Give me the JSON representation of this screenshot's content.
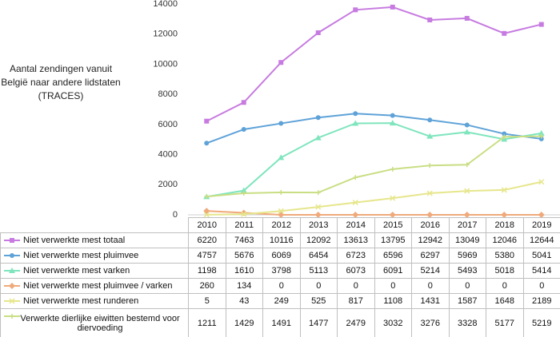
{
  "chart_data": {
    "type": "line",
    "title": "Aantal zendingen vanuit België naar andere lidstaten (TRACES)",
    "categories": [
      "2010",
      "2011",
      "2012",
      "2013",
      "2014",
      "2015",
      "2016",
      "2017",
      "2018",
      "2019"
    ],
    "ylim": [
      0,
      14000
    ],
    "yticks": [
      0,
      2000,
      4000,
      6000,
      8000,
      10000,
      12000,
      14000
    ],
    "grid": false,
    "series": [
      {
        "name": "Niet verwerkte mest totaal",
        "color": "#c77be0",
        "marker": "square",
        "values": [
          6220,
          7463,
          10116,
          12092,
          13613,
          13795,
          12942,
          13049,
          12046,
          12644
        ]
      },
      {
        "name": "Niet verwerkte mest pluimvee",
        "color": "#5ea2d8",
        "marker": "circle",
        "values": [
          4757,
          5676,
          6069,
          6454,
          6723,
          6596,
          6297,
          5969,
          5380,
          5041
        ]
      },
      {
        "name": "Niet verwerkte mest varken",
        "color": "#7fe5be",
        "marker": "triangle",
        "values": [
          1198,
          1610,
          3798,
          5113,
          6073,
          6091,
          5214,
          5493,
          5018,
          5414
        ]
      },
      {
        "name": "Niet verwerkte mest pluimvee / varken",
        "color": "#f0a97a",
        "marker": "diamond",
        "values": [
          260,
          134,
          0,
          0,
          0,
          0,
          0,
          0,
          0,
          0
        ]
      },
      {
        "name": "Niet verwerkte mest runderen",
        "color": "#e6e68c",
        "marker": "x",
        "values": [
          5,
          43,
          249,
          525,
          817,
          1108,
          1431,
          1587,
          1648,
          2189
        ]
      },
      {
        "name": "Verwerkte dierlijke eiwitten bestemd voor diervoeding",
        "color": "#c9de84",
        "marker": "plus",
        "values": [
          1211,
          1429,
          1491,
          1477,
          2479,
          3032,
          3276,
          3328,
          5177,
          5219
        ]
      }
    ]
  }
}
